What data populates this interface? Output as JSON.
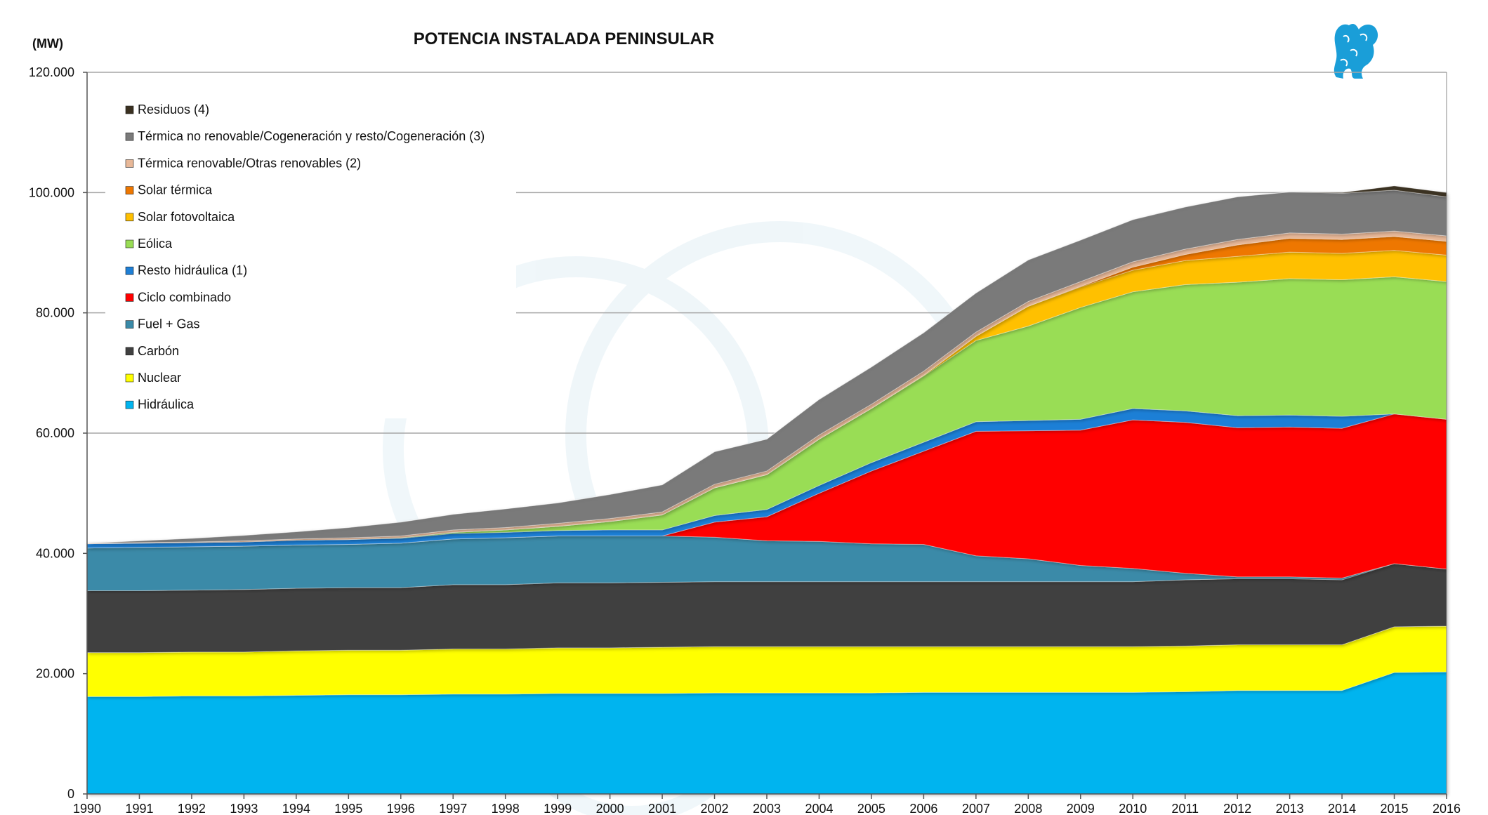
{
  "chart_data": {
    "type": "area",
    "stacked": true,
    "title": "POTENCIA INSTALADA PENINSULAR",
    "unit_label": "(MW)",
    "x": [
      "1990",
      "1991",
      "1992",
      "1993",
      "1994",
      "1995",
      "1996",
      "1997",
      "1998",
      "1999",
      "2000",
      "2001",
      "2002",
      "2003",
      "2004",
      "2005",
      "2006",
      "2007",
      "2008",
      "2009",
      "2010",
      "2011",
      "2012",
      "2013",
      "2014",
      "2015",
      "2016"
    ],
    "ylim": [
      0,
      120000
    ],
    "yticks": [
      0,
      20000,
      40000,
      60000,
      80000,
      100000,
      120000
    ],
    "ytick_labels": [
      "0",
      "20.000",
      "40.000",
      "60.000",
      "80.000",
      "100.000",
      "120.000"
    ],
    "grid": true,
    "legend_position": "top-left",
    "series": [
      {
        "name": "Hidráulica",
        "color": "#00b4ef",
        "values": [
          16200,
          16200,
          16300,
          16300,
          16400,
          16500,
          16500,
          16600,
          16600,
          16700,
          16700,
          16700,
          16800,
          16800,
          16800,
          16800,
          16900,
          16900,
          16900,
          16900,
          16900,
          17000,
          17200,
          17200,
          17200,
          20200,
          20300
        ]
      },
      {
        "name": "Nuclear",
        "color": "#ffff00",
        "values": [
          7300,
          7300,
          7300,
          7300,
          7400,
          7400,
          7400,
          7500,
          7500,
          7600,
          7600,
          7700,
          7700,
          7700,
          7700,
          7700,
          7600,
          7600,
          7600,
          7600,
          7600,
          7600,
          7600,
          7600,
          7600,
          7600,
          7600
        ]
      },
      {
        "name": "Carbón",
        "color": "#404040",
        "values": [
          10300,
          10300,
          10300,
          10400,
          10400,
          10400,
          10400,
          10700,
          10700,
          10800,
          10800,
          10800,
          10800,
          10800,
          10800,
          10800,
          10800,
          10800,
          10800,
          10800,
          10800,
          11000,
          11000,
          11000,
          10800,
          10500,
          9500
        ]
      },
      {
        "name": "Fuel + Gas",
        "color": "#3a8aa8",
        "values": [
          7100,
          7200,
          7200,
          7200,
          7200,
          7200,
          7400,
          7600,
          7800,
          7800,
          7800,
          7700,
          7400,
          6800,
          6700,
          6300,
          6200,
          4300,
          3800,
          2700,
          2200,
          1100,
          300,
          300,
          300,
          0,
          0
        ]
      },
      {
        "name": "Ciclo combinado",
        "color": "#ff0000",
        "values": [
          0,
          0,
          0,
          0,
          0,
          0,
          0,
          0,
          0,
          0,
          0,
          0,
          2500,
          4000,
          8000,
          12100,
          15500,
          20700,
          21300,
          22500,
          24700,
          25100,
          24800,
          24900,
          24900,
          24900,
          24900
        ]
      },
      {
        "name": "Resto hidráulica (1)",
        "color": "#1e7fd6",
        "values": [
          700,
          700,
          700,
          700,
          800,
          800,
          800,
          900,
          900,
          900,
          1000,
          1000,
          1100,
          1200,
          1300,
          1400,
          1500,
          1600,
          1700,
          1800,
          1900,
          1900,
          2000,
          2000,
          2000,
          0,
          0
        ]
      },
      {
        "name": "Eólica",
        "color": "#99dd55",
        "values": [
          0,
          0,
          0,
          0,
          0,
          0,
          100,
          200,
          400,
          700,
          1400,
          2500,
          4600,
          5800,
          7700,
          9000,
          11000,
          13500,
          15700,
          18600,
          19400,
          21000,
          22200,
          22700,
          22700,
          22800,
          22900
        ]
      },
      {
        "name": "Solar fotovoltaica",
        "color": "#ffc000",
        "values": [
          0,
          0,
          0,
          0,
          0,
          0,
          0,
          0,
          0,
          0,
          0,
          0,
          0,
          0,
          0,
          0,
          100,
          700,
          3300,
          3400,
          3600,
          4000,
          4300,
          4400,
          4400,
          4400,
          4400
        ]
      },
      {
        "name": "Solar térmica",
        "color": "#ee7700",
        "values": [
          0,
          0,
          0,
          0,
          0,
          0,
          0,
          0,
          0,
          0,
          0,
          0,
          0,
          0,
          0,
          0,
          0,
          0,
          0,
          100,
          500,
          1000,
          1900,
          2300,
          2300,
          2300,
          2300
        ]
      },
      {
        "name": "Térmica renovable/Otras renovables (2)",
        "color": "#e8b898",
        "values": [
          100,
          100,
          100,
          200,
          200,
          300,
          300,
          400,
          400,
          500,
          500,
          500,
          600,
          600,
          700,
          700,
          700,
          700,
          800,
          800,
          900,
          900,
          900,
          900,
          900,
          900,
          900
        ]
      },
      {
        "name": "Térmica no renovable/Cogeneración y resto/Cogeneración (3)",
        "color": "#7a7a7a",
        "values": [
          0,
          300,
          600,
          900,
          1200,
          1700,
          2300,
          2600,
          3100,
          3400,
          4000,
          4500,
          5400,
          5300,
          5900,
          6200,
          6400,
          6500,
          6900,
          6900,
          7000,
          7000,
          7100,
          6800,
          6800,
          6800,
          6500
        ]
      },
      {
        "name": "Residuos (4)",
        "color": "#3a3020",
        "values": [
          0,
          0,
          0,
          0,
          0,
          0,
          0,
          0,
          0,
          0,
          0,
          0,
          0,
          0,
          0,
          0,
          0,
          0,
          0,
          0,
          0,
          0,
          0,
          0,
          100,
          700,
          700
        ]
      }
    ],
    "xlabel": "",
    "ylabel": ""
  }
}
